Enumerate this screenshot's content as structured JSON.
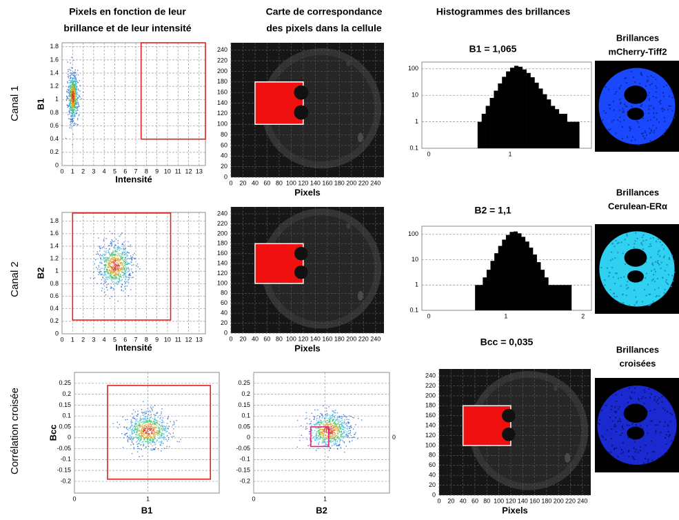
{
  "headers": [
    [
      "Pixels en fonction de leur",
      "brillance et de leur intensité"
    ],
    [
      "Carte de correspondance",
      "des pixels dans la cellule"
    ],
    [
      "Histogrammes des brillances"
    ]
  ],
  "row_labels": [
    "Canal 1",
    "Canal 2",
    "Corrélation croisée"
  ],
  "scatters": [
    {
      "xlabel": "Intensité",
      "ylabel": "B1",
      "xlim": [
        0,
        13.6
      ],
      "ylim": [
        0,
        1.86
      ],
      "xticks": [
        0,
        1,
        2,
        3,
        4,
        5,
        6,
        7,
        8,
        9,
        10,
        11,
        12,
        13
      ],
      "yticks": [
        0,
        0.2,
        0.4,
        0.6,
        0.8,
        1,
        1.2,
        1.4,
        1.6,
        1.8
      ],
      "gate_x": [
        7.5,
        13.6
      ],
      "gate_y": [
        0.4,
        1.86
      ],
      "cloud": {
        "x": 1,
        "y": 1.05,
        "sx": 0.25,
        "sy": 0.18
      }
    },
    {
      "xlabel": "Intensité",
      "ylabel": "B2",
      "xlim": [
        0,
        13.6
      ],
      "ylim": [
        0,
        1.94
      ],
      "xticks": [
        0,
        1,
        2,
        3,
        4,
        5,
        6,
        7,
        8,
        9,
        10,
        11,
        12,
        13
      ],
      "yticks": [
        0,
        0.2,
        0.4,
        0.6,
        0.8,
        1,
        1.2,
        1.4,
        1.6,
        1.8
      ],
      "gate_x": [
        1,
        10.3
      ],
      "gate_y": [
        0.22,
        1.93
      ],
      "cloud": {
        "x": 5,
        "y": 1.1,
        "sx": 0.8,
        "sy": 0.18
      }
    },
    {
      "xlabel": "B1",
      "ylabel": "Bcc",
      "xlim": [
        0,
        1.97
      ],
      "ylim": [
        -0.254,
        0.3
      ],
      "xticks": [
        0,
        1
      ],
      "yticks": [
        -0.2,
        -0.15,
        -0.1,
        -0.05,
        0,
        0.05,
        0.1,
        0.15,
        0.2,
        0.25
      ],
      "gate_x": [
        0.45,
        1.85
      ],
      "gate_y": [
        -0.19,
        0.24
      ],
      "cloud": {
        "x": 1,
        "y": 0.035,
        "sx": 0.15,
        "sy": 0.04
      }
    },
    {
      "xlabel": "B2",
      "ylabel": "",
      "xlim": [
        0,
        1.9
      ],
      "ylim": [
        -0.254,
        0.3
      ],
      "xticks": [
        0,
        1
      ],
      "yticks": [
        -0.2,
        -0.15,
        -0.1,
        -0.05,
        0,
        0.05,
        0.1,
        0.15,
        0.2,
        0.25
      ],
      "right_ticks": [
        0
      ],
      "gate_x": [
        0.8,
        1.05
      ],
      "gate_y": [
        -0.04,
        0.05
      ],
      "cloud": {
        "x": 1.05,
        "y": 0.035,
        "sx": 0.15,
        "sy": 0.04
      }
    }
  ],
  "maps": [
    {
      "xlabel": "Pixels",
      "xlim": [
        0,
        254
      ],
      "ylim": [
        0,
        254
      ],
      "xticks": [
        0,
        20,
        40,
        60,
        80,
        100,
        120,
        140,
        160,
        180,
        200,
        220,
        240
      ],
      "yticks": [
        0,
        20,
        40,
        60,
        80,
        100,
        120,
        140,
        160,
        180,
        200,
        220,
        240
      ],
      "roi_x": [
        40,
        120
      ],
      "roi_y": [
        100,
        180
      ]
    },
    {
      "xlabel": "Pixels",
      "xlim": [
        0,
        254
      ],
      "ylim": [
        0,
        254
      ],
      "xticks": [
        0,
        20,
        40,
        60,
        80,
        100,
        120,
        140,
        160,
        180,
        200,
        220,
        240
      ],
      "yticks": [
        0,
        20,
        40,
        60,
        80,
        100,
        120,
        140,
        160,
        180,
        200,
        220,
        240
      ],
      "roi_x": [
        40,
        120
      ],
      "roi_y": [
        100,
        180
      ]
    },
    {
      "title": "Bcc = 0,035",
      "xlabel": "Pixels",
      "xlim": [
        0,
        254
      ],
      "ylim": [
        0,
        254
      ],
      "xticks": [
        0,
        20,
        40,
        60,
        80,
        100,
        120,
        140,
        160,
        180,
        200,
        220,
        240
      ],
      "yticks": [
        0,
        20,
        40,
        60,
        80,
        100,
        120,
        140,
        160,
        180,
        200,
        220,
        240
      ],
      "roi_x": [
        40,
        120
      ],
      "roi_y": [
        100,
        180
      ]
    }
  ],
  "histograms": [
    {
      "title": "B1 = 1,065",
      "log_y": true,
      "xlim": [
        -0.085,
        2
      ],
      "ylim": [
        0.1,
        180
      ],
      "xticks": [
        0,
        1
      ],
      "yticks": [
        0.1,
        1,
        10,
        100
      ],
      "bins": [
        0.6,
        0.65,
        0.7,
        0.75,
        0.8,
        0.85,
        0.9,
        0.95,
        1,
        1.05,
        1.1,
        1.15,
        1.2,
        1.25,
        1.3,
        1.35,
        1.4,
        1.45,
        1.5,
        1.55,
        1.6,
        1.65,
        1.7,
        1.75,
        1.8,
        1.85
      ],
      "values": [
        1,
        2,
        4,
        8,
        15,
        28,
        50,
        80,
        110,
        130,
        120,
        95,
        70,
        48,
        30,
        18,
        11,
        7,
        4,
        3,
        2,
        2,
        1,
        1,
        1
      ]
    },
    {
      "title": "B2 = 1,1",
      "log_y": true,
      "xlim": [
        -0.09,
        2.11
      ],
      "ylim": [
        0.1,
        210
      ],
      "xticks": [
        0,
        1,
        2
      ],
      "yticks": [
        0.1,
        1,
        10,
        100
      ],
      "bins": [
        0.6,
        0.65,
        0.7,
        0.75,
        0.8,
        0.85,
        0.9,
        0.95,
        1,
        1.05,
        1.1,
        1.15,
        1.2,
        1.25,
        1.3,
        1.35,
        1.4,
        1.45,
        1.5,
        1.55,
        1.6,
        1.65,
        1.7,
        1.75,
        1.8,
        1.85
      ],
      "values": [
        1,
        1,
        2,
        4,
        9,
        18,
        35,
        62,
        95,
        125,
        130,
        110,
        80,
        52,
        30,
        16,
        8,
        4,
        2,
        1,
        1,
        1,
        1,
        1,
        1
      ]
    }
  ],
  "images": [
    [
      "Brillances",
      "mCherry-Tiff2"
    ],
    [
      "Brillances",
      "Cerulean-ERα"
    ],
    [
      "Brillances",
      "croisées"
    ]
  ]
}
